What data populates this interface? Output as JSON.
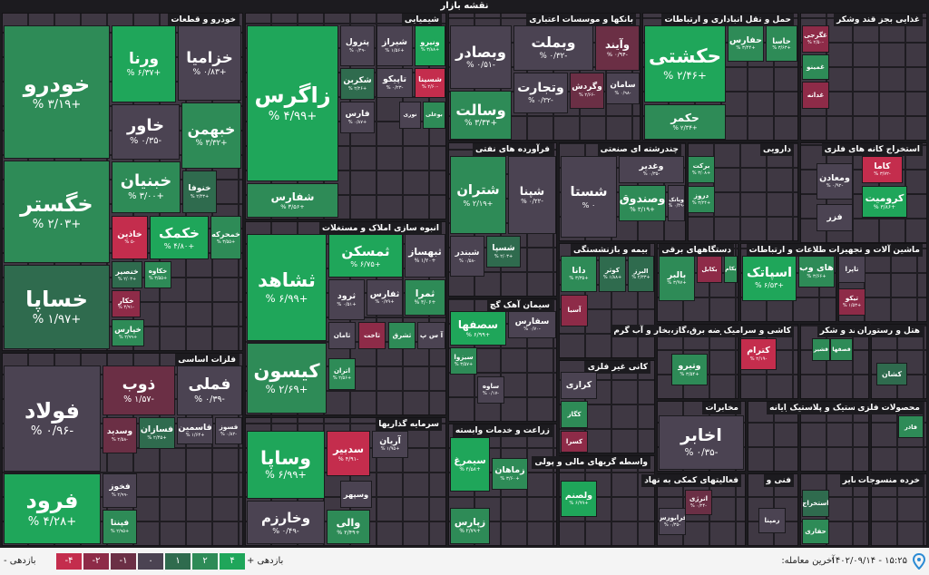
{
  "header": {
    "title": "نقشه بازار"
  },
  "sectors": [
    {
      "title": "خودرو و قطعات",
      "tiles": [
        {
          "name": "خودرو",
          "change": "+۳/۱۹ %",
          "color": "#2e8b57"
        },
        {
          "name": "خگستر",
          "change": "+۲/۰۳ %",
          "color": "#2e8b57"
        },
        {
          "name": "خساپا",
          "change": "+۱/۹۷ %",
          "color": "#2f6b4e"
        },
        {
          "name": "ورنا",
          "change": "+۶/۳۷ %",
          "color": "#1fa65a"
        },
        {
          "name": "خزامیا",
          "change": "+۰/۸۳ %",
          "color": "#4b4352"
        },
        {
          "name": "خاور",
          "change": "-۰/۳۵ %",
          "color": "#4b4352"
        },
        {
          "name": "خبهمن",
          "change": "+۳/۳۲ %",
          "color": "#2e8b57"
        },
        {
          "name": "خبنیان",
          "change": "+۳/۰۰ %",
          "color": "#2e8b57"
        },
        {
          "name": "خنوفا",
          "change": "+۲/۴۳ %",
          "color": "#2f6b4e"
        },
        {
          "name": "خاذین",
          "change": "-۵ %",
          "color": "#c42d4d"
        },
        {
          "name": "خکمک",
          "change": "+۴/۸۰ %",
          "color": "#1fa65a"
        },
        {
          "name": "خمحرکه",
          "change": "+۳/۵۵ %",
          "color": "#2e8b57"
        },
        {
          "name": "خنصیر",
          "change": "+۲/۰۳ %",
          "color": "#2f6b4e"
        },
        {
          "name": "خکاوه",
          "change": "+۳/۵۵ %",
          "color": "#2e8b57"
        },
        {
          "name": "خکار",
          "change": "-۳/۹۱ %",
          "color": "#8e2b48"
        },
        {
          "name": "خپارس",
          "change": "+۲/۹۹ %",
          "color": "#2e8b57"
        }
      ]
    },
    {
      "title": "فلزات اساسی",
      "tiles": [
        {
          "name": "فولاد",
          "change": "-۰/۹۶ %",
          "color": "#4b4352"
        },
        {
          "name": "فرود",
          "change": "+۴/۲۸ %",
          "color": "#1fa65a"
        },
        {
          "name": "ذوب",
          "change": "-۱/۵۷ %",
          "color": "#6b2f45"
        },
        {
          "name": "فملی",
          "change": "-۰/۳۹ %",
          "color": "#4b4352"
        },
        {
          "name": "وسدید",
          "change": "-۲/۵۸ %",
          "color": "#6b2f45"
        },
        {
          "name": "فسازان",
          "change": "+۲/۴۵ %",
          "color": "#2f6b4e"
        },
        {
          "name": "فاسمین",
          "change": "+۱/۶۴ %",
          "color": "#4b4352"
        },
        {
          "name": "فسوز",
          "change": "-۰/۸۲ %",
          "color": "#4b4352"
        },
        {
          "name": "فخوز",
          "change": "-۲/۹۹ %",
          "color": "#4b4352"
        },
        {
          "name": "فپنتا",
          "change": "+۲/۹۵ %",
          "color": "#2e8b57"
        }
      ]
    },
    {
      "title": "شیمیایی",
      "tiles": [
        {
          "name": "زاگرس",
          "change": "+۴/۹۹ %",
          "color": "#1fa65a"
        },
        {
          "name": "شفارس",
          "change": "+۳/۵۶ %",
          "color": "#2e8b57"
        },
        {
          "name": "پترول",
          "change": "-۰/۴۹ %",
          "color": "#4b4352"
        },
        {
          "name": "شیراز",
          "change": "+۱/۵۶ %",
          "color": "#4b4352"
        },
        {
          "name": "ونیرو",
          "change": "+۳/۸۸ %",
          "color": "#1fa65a"
        },
        {
          "name": "شکربن",
          "change": "+۲/۲۶ %",
          "color": "#2f6b4e"
        },
        {
          "name": "تاپیکو",
          "change": "-۰/۲۳ %",
          "color": "#4b4352"
        },
        {
          "name": "شسینا",
          "change": "-۲/۶۰ %",
          "color": "#c42d4d"
        },
        {
          "name": "فارس",
          "change": "+۰/۸۷ %",
          "color": "#4b4352"
        },
        {
          "name": "نوری",
          "color": "#4b4352"
        },
        {
          "name": "بوعلی",
          "color": "#2e8b57"
        }
      ]
    },
    {
      "title": "انبوه سازی املاک و مستغلات",
      "tiles": [
        {
          "name": "ثشاهد",
          "change": "+۶/۹۹ %",
          "color": "#1fa65a"
        },
        {
          "name": "کیسون",
          "change": "+۲/۶۹ %",
          "color": "#2e8b57"
        },
        {
          "name": "ثمسکن",
          "change": "+۶/۷۵ %",
          "color": "#1fa65a"
        },
        {
          "name": "ثبهساز",
          "change": "+۱/۲۰ %",
          "color": "#4b4352"
        },
        {
          "name": "ثرود",
          "change": "+۰/۵۱ %",
          "color": "#4b4352"
        },
        {
          "name": "ثفارس",
          "change": "+۰/۷۹ %",
          "color": "#4b4352"
        },
        {
          "name": "ثمرا",
          "change": "+۳/۰۶ %",
          "color": "#2e8b57"
        },
        {
          "name": "ثامان",
          "color": "#4b4352"
        },
        {
          "name": "ثاخت",
          "color": "#8e2b48"
        },
        {
          "name": "ثشرق",
          "color": "#2e8b57"
        },
        {
          "name": "آ س پ",
          "color": "#4b4352"
        },
        {
          "name": "اتران",
          "change": "+۲/۵۶ %",
          "color": "#2e8b57"
        }
      ]
    },
    {
      "title": "سرمایه گذاریها",
      "tiles": [
        {
          "name": "وساپا",
          "change": "+۶/۹۹ %",
          "color": "#1fa65a"
        },
        {
          "name": "وخارزم",
          "change": "-۰/۴۹ %",
          "color": "#4b4352"
        },
        {
          "name": "سدبیر",
          "change": "-۴/۹۱ %",
          "color": "#c42d4d"
        },
        {
          "name": "آریان",
          "change": "+۱/۹۵ %",
          "color": "#4b4352"
        },
        {
          "name": "وسپهر",
          "color": "#4b4352"
        },
        {
          "name": "والی",
          "change": "+۲/۴۹ %",
          "color": "#2e8b57"
        }
      ]
    },
    {
      "title": "بانکها و موسسات اعتباری",
      "tiles": [
        {
          "name": "وبصادر",
          "change": "-۰/۵۱ %",
          "color": "#4b4352"
        },
        {
          "name": "وسالت",
          "change": "+۳/۳۴ %",
          "color": "#2e8b57"
        },
        {
          "name": "وبملت",
          "change": "-۰/۳۲ %",
          "color": "#4b4352"
        },
        {
          "name": "وآیند",
          "change": "-۰/۹۴ %",
          "color": "#6b2f45"
        },
        {
          "name": "وتجارت",
          "change": "-۰/۳۲ %",
          "color": "#4b4352"
        },
        {
          "name": "وگردش",
          "change": "-۲/۶۶ %",
          "color": "#6b2f45"
        },
        {
          "name": "سامان",
          "change": "-۰/۹۸ %",
          "color": "#4b4352"
        }
      ]
    },
    {
      "title": "فرآورده های نفتی",
      "tiles": [
        {
          "name": "شتران",
          "change": "+۲/۱۹ %",
          "color": "#2e8b57"
        },
        {
          "name": "شپنا",
          "change": "-۰/۲۲ %",
          "color": "#4b4352"
        },
        {
          "name": "شبندر",
          "change": "-۰/۵۸ %",
          "color": "#4b4352"
        },
        {
          "name": "شسپا",
          "change": "+۲/۰۳ %",
          "color": "#2f6b4e"
        }
      ]
    },
    {
      "title": "چندرشته ای صنعتی",
      "tiles": [
        {
          "name": "شستا",
          "change": "۰ %",
          "color": "#4b4352"
        },
        {
          "name": "وغدیر",
          "change": "-۰/۳۵ %",
          "color": "#4b4352"
        },
        {
          "name": "وصندوق",
          "change": "+۳/۱۹ %",
          "color": "#2e8b57"
        },
        {
          "name": "وبانک",
          "change": "-۰/۴۹ %",
          "color": "#4b4352"
        }
      ]
    },
    {
      "title": "حمل و نقل انباداری و ارتباطات",
      "tiles": [
        {
          "name": "حکشتی",
          "change": "+۲/۴۶ %",
          "color": "#1fa65a"
        },
        {
          "name": "حکمر",
          "change": "+۲/۳۴ %",
          "color": "#2e8b57"
        },
        {
          "name": "حفارس",
          "change": "+۳/۴۴ %",
          "color": "#2e8b57"
        },
        {
          "name": "حاسا",
          "change": "+۳/۶۳ %",
          "color": "#2e8b57"
        }
      ]
    },
    {
      "title": "غذایی بجز قند وشکر",
      "tiles": [
        {
          "name": "غگرجی",
          "change": "-۲/۵۰ %",
          "color": "#8e2b48"
        },
        {
          "name": "غمینو",
          "color": "#2e8b57"
        },
        {
          "name": "غدانه",
          "color": "#8e2b48"
        }
      ]
    },
    {
      "title": "دارویی",
      "tiles": [
        {
          "name": "برکت",
          "change": "+۳/۰۸ %",
          "color": "#2e8b57"
        },
        {
          "name": "دروز",
          "change": "+۳/۲۴ %",
          "color": "#2e8b57"
        }
      ]
    },
    {
      "title": "استخراج کانه های فلزی",
      "tiles": [
        {
          "name": "کاما",
          "change": "-۳/۷۲ %",
          "color": "#c42d4d"
        },
        {
          "name": "ومعادن",
          "change": "-۰/۹۲ %",
          "color": "#4b4352"
        },
        {
          "name": "کرومیت",
          "change": "+۳/۸۶ %",
          "color": "#1fa65a"
        },
        {
          "name": "فزر",
          "color": "#4b4352"
        }
      ]
    },
    {
      "title": "بیمه و بازنشستگی",
      "tiles": [
        {
          "name": "دانا",
          "change": "+۳/۳۵ %",
          "color": "#2e8b57"
        },
        {
          "name": "کوثر",
          "change": "+۱/۸۸ %",
          "color": "#2f6b4e"
        },
        {
          "name": "البرز",
          "change": "+۲/۳۳ %",
          "color": "#2f6b4e"
        },
        {
          "name": "آسیا",
          "color": "#8e2b48"
        }
      ]
    },
    {
      "title": "دستگاههای برقی",
      "tiles": [
        {
          "name": "بالبر",
          "change": "+۳/۹۷ %",
          "color": "#2e8b57"
        },
        {
          "name": "بکابل",
          "color": "#8e2b48"
        },
        {
          "name": "بکام",
          "color": "#2e8b57"
        }
      ]
    },
    {
      "title": "اطلاعات و ارتباطات",
      "tiles": [
        {
          "name": "اسپاتک",
          "change": "+۶/۵۳ %",
          "color": "#1fa65a"
        },
        {
          "name": "های وب",
          "change": "+۳/۶۶ %",
          "color": "#2e8b57"
        }
      ]
    },
    {
      "title": "ماشین آلات و تجهیزات",
      "tiles": [
        {
          "name": "تاپرا",
          "color": "#4b4352"
        },
        {
          "name": "تیکو",
          "change": "+۱/۵۳ %",
          "color": "#8e2b48"
        }
      ]
    },
    {
      "title": "سیمان آهک گچ",
      "tiles": [
        {
          "name": "سصفها",
          "change": "+۶/۹۹ %",
          "color": "#1fa65a"
        },
        {
          "name": "سفارس",
          "change": "-۰/۷۰ %",
          "color": "#4b4352"
        },
        {
          "name": "سیزوا",
          "change": "+۳/۵۷ %",
          "color": "#2e8b57"
        },
        {
          "name": "ساوه",
          "change": "-۰/۱۷ %",
          "color": "#4b4352"
        }
      ]
    },
    {
      "title": "کانی غیر فلزی",
      "tiles": [
        {
          "name": "کرازی",
          "color": "#4b4352"
        },
        {
          "name": "کگاز",
          "color": "#2e8b57"
        },
        {
          "name": "کسرا",
          "color": "#8e2b48"
        }
      ]
    },
    {
      "title": "زراعت و خدمات وابسته",
      "tiles": [
        {
          "name": "سیمرغ",
          "change": "+۴/۵۸ %",
          "color": "#1fa65a"
        },
        {
          "name": "زماهان",
          "change": "+۳/۶۰ %",
          "color": "#2e8b57"
        },
        {
          "name": "زپارس",
          "change": "+۲/۷۹ %",
          "color": "#2e8b57"
        }
      ]
    },
    {
      "title": "واسطه گریهای مالی و پولی",
      "tiles": [
        {
          "name": "ولصنم",
          "change": "+۶/۹۹ %",
          "color": "#1fa65a"
        }
      ]
    },
    {
      "title": "عرضه برق،گاز،بخار و آب گرم",
      "tiles": [
        {
          "name": "وتیرو",
          "change": "+۳/۵۴ %",
          "color": "#2e8b57"
        }
      ]
    },
    {
      "title": "کاشی و سرامیک",
      "tiles": [
        {
          "name": "کترام",
          "change": "-۲/۱۹ %",
          "color": "#c42d4d"
        }
      ]
    },
    {
      "title": "قند و شکر",
      "tiles": [
        {
          "name": "قشیر",
          "color": "#2e8b57"
        },
        {
          "name": "قصفها",
          "color": "#2e8b57"
        }
      ]
    },
    {
      "title": "هتل و رستوران",
      "tiles": [
        {
          "name": "کشان",
          "color": "#2f6b4e"
        }
      ]
    },
    {
      "title": "مخابرات",
      "tiles": [
        {
          "name": "اخابر",
          "change": "-۰/۳۵ %",
          "color": "#4b4352"
        }
      ]
    },
    {
      "title": "فعالیتهای کمکی به نهاد",
      "tiles": [
        {
          "name": "انرژی",
          "change": "-۰/۲۴ %",
          "color": "#6b2f45"
        },
        {
          "name": "فرابورس",
          "change": "-۰/۳۵ %",
          "color": "#4b4352"
        }
      ]
    },
    {
      "title": "رایانه",
      "tiles": []
    },
    {
      "title": "لاستیک و پلاستیک",
      "tiles": []
    },
    {
      "title": "محصولات فلزی",
      "tiles": [
        {
          "name": "فاذر",
          "color": "#2e8b57"
        }
      ]
    },
    {
      "title": "فنی و",
      "tiles": [
        {
          "name": "رمپنا",
          "color": "#4b4352"
        }
      ]
    },
    {
      "title": "سایر",
      "tiles": [
        {
          "name": "استخراج",
          "color": "#2f6b4e"
        },
        {
          "name": "حفاری",
          "color": "#2e8b57"
        }
      ]
    },
    {
      "title": "خرده منسوجات",
      "tiles": []
    }
  ],
  "footer": {
    "last_trade_label": "آخرین معامله:",
    "last_trade": "۱۵:۲۵ - ۱۴۰۲/۰۹/۱۴",
    "positive_label": "بازدهی +",
    "negative_label": "بازدهی -",
    "legend": [
      {
        "label": "-۴",
        "color": "#c42d4d"
      },
      {
        "label": "-۲",
        "color": "#8e2b48"
      },
      {
        "label": "-۱",
        "color": "#6b2f45"
      },
      {
        "label": "۰",
        "color": "#4b4352"
      },
      {
        "label": "۱",
        "color": "#2f6b4e"
      },
      {
        "label": "۲",
        "color": "#2e8b57"
      },
      {
        "label": "۴",
        "color": "#1fa65a"
      }
    ]
  }
}
